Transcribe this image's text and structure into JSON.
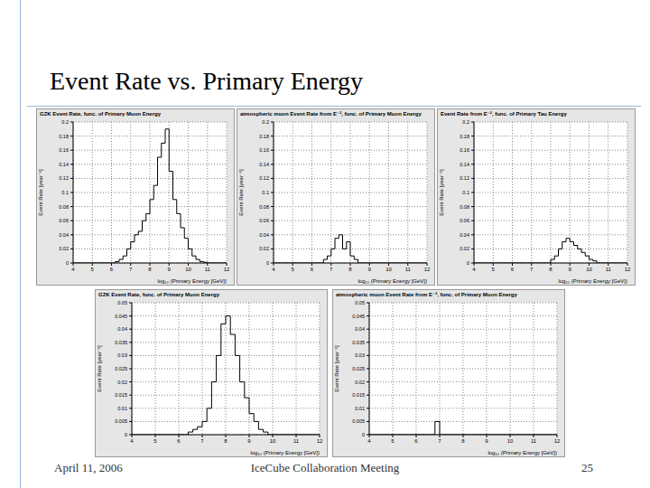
{
  "slide": {
    "title": "Event Rate vs. Primary Energy",
    "footer": {
      "date": "April 11, 2006",
      "meeting": "IceCube Collaboration Meeting",
      "page": "25"
    }
  },
  "chart_data": [
    {
      "type": "histogram",
      "title": "GZK Event Rate, func. of Primary Muon Energy",
      "x_label": "log₁₀ (Primary Energy [GeV])",
      "y_label": "Event Rate [year⁻¹]",
      "color": "#000000",
      "grid": true,
      "bins": [
        4,
        4.2,
        4.4,
        4.6,
        4.8,
        5,
        5.2,
        5.4,
        5.6,
        5.8,
        6,
        6.2,
        6.4,
        6.6,
        6.8,
        7,
        7.2,
        7.4,
        7.6,
        7.8,
        8,
        8.2,
        8.4,
        8.6,
        8.8,
        9,
        9.2,
        9.4,
        9.6,
        9.8,
        10,
        10.2,
        10.4,
        10.6,
        10.8,
        11,
        11.2,
        11.4,
        11.6,
        11.8,
        12
      ],
      "counts": [
        0,
        0,
        0,
        0,
        0,
        0,
        0,
        0,
        0,
        0,
        0,
        0.002,
        0.005,
        0.01,
        0.02,
        0.03,
        0.04,
        0.045,
        0.06,
        0.07,
        0.09,
        0.11,
        0.15,
        0.17,
        0.19,
        0.13,
        0.09,
        0.07,
        0.05,
        0.035,
        0.02,
        0.01,
        0.005,
        0.002,
        0.001,
        0,
        0,
        0,
        0,
        0
      ],
      "xlim": [
        4,
        12
      ],
      "xticks": [
        4,
        5,
        6,
        7,
        8,
        9,
        10,
        11,
        12
      ],
      "ylim": [
        0,
        0.2
      ],
      "yticks": [
        0,
        0.02,
        0.04,
        0.06,
        0.08,
        0.1,
        0.12,
        0.14,
        0.16,
        0.18,
        0.2
      ]
    },
    {
      "type": "histogram",
      "title": "atmospheric muon Event Rate from E⁻², func. of Primary Muon Energy",
      "x_label": "log₁₀ (Primary Energy [GeV])",
      "y_label": "Event Rate [year⁻¹]",
      "color": "#000000",
      "grid": true,
      "bins": [
        4,
        4.2,
        4.4,
        4.6,
        4.8,
        5,
        5.2,
        5.4,
        5.6,
        5.8,
        6,
        6.2,
        6.4,
        6.6,
        6.8,
        7,
        7.2,
        7.4,
        7.6,
        7.8,
        8,
        8.2,
        8.4,
        8.6,
        8.8,
        9,
        9.2,
        9.4,
        9.6,
        9.8,
        10,
        10.2,
        10.4,
        10.6,
        10.8,
        11,
        11.2,
        11.4,
        11.6,
        11.8,
        12
      ],
      "counts": [
        0,
        0,
        0,
        0,
        0,
        0,
        0,
        0,
        0,
        0,
        0,
        0,
        0,
        0.005,
        0.01,
        0.02,
        0.035,
        0.04,
        0.02,
        0.03,
        0.01,
        0.005,
        0,
        0,
        0,
        0,
        0,
        0,
        0,
        0,
        0,
        0,
        0,
        0,
        0,
        0,
        0,
        0,
        0,
        0
      ],
      "xlim": [
        4,
        12
      ],
      "xticks": [
        4,
        5,
        6,
        7,
        8,
        9,
        10,
        11,
        12
      ],
      "ylim": [
        0,
        0.2
      ],
      "yticks": [
        0,
        0.02,
        0.04,
        0.06,
        0.08,
        0.1,
        0.12,
        0.14,
        0.16,
        0.18,
        0.2
      ]
    },
    {
      "type": "histogram",
      "title": "Event Rate from E⁻², func. of Primary Tau Energy",
      "x_label": "log₁₀ (Primary Energy [GeV])",
      "y_label": "Event Rate [year⁻¹]",
      "color": "#000000",
      "grid": true,
      "bins": [
        4,
        4.2,
        4.4,
        4.6,
        4.8,
        5,
        5.2,
        5.4,
        5.6,
        5.8,
        6,
        6.2,
        6.4,
        6.6,
        6.8,
        7,
        7.2,
        7.4,
        7.6,
        7.8,
        8,
        8.2,
        8.4,
        8.6,
        8.8,
        9,
        9.2,
        9.4,
        9.6,
        9.8,
        10,
        10.2,
        10.4,
        10.6,
        10.8,
        11,
        11.2,
        11.4,
        11.6,
        11.8,
        12
      ],
      "counts": [
        0,
        0,
        0,
        0,
        0,
        0,
        0,
        0,
        0,
        0,
        0,
        0,
        0,
        0,
        0,
        0,
        0,
        0,
        0,
        0,
        0.005,
        0.01,
        0.02,
        0.03,
        0.035,
        0.03,
        0.025,
        0.02,
        0.015,
        0.01,
        0.005,
        0.003,
        0,
        0,
        0,
        0,
        0,
        0,
        0,
        0
      ],
      "xlim": [
        4,
        12
      ],
      "xticks": [
        4,
        5,
        6,
        7,
        8,
        9,
        10,
        11,
        12
      ],
      "ylim": [
        0,
        0.2
      ],
      "yticks": [
        0,
        0.02,
        0.04,
        0.06,
        0.08,
        0.1,
        0.12,
        0.14,
        0.16,
        0.18,
        0.2
      ]
    },
    {
      "type": "histogram",
      "title": "GZK Event Rate, func. of Primary Muon Energy",
      "x_label": "log₁₀ (Primary Energy [GeV])",
      "y_label": "Event Rate [year⁻¹]",
      "color": "#000000",
      "grid": true,
      "bins": [
        4,
        4.2,
        4.4,
        4.6,
        4.8,
        5,
        5.2,
        5.4,
        5.6,
        5.8,
        6,
        6.2,
        6.4,
        6.6,
        6.8,
        7,
        7.2,
        7.4,
        7.6,
        7.8,
        8,
        8.2,
        8.4,
        8.6,
        8.8,
        9,
        9.2,
        9.4,
        9.6,
        9.8,
        10,
        10.2,
        10.4,
        10.6,
        10.8,
        11,
        11.2,
        11.4,
        11.6,
        11.8,
        12
      ],
      "counts": [
        0,
        0,
        0,
        0,
        0,
        0,
        0,
        0,
        0,
        0,
        0,
        0,
        0.001,
        0.002,
        0.003,
        0.005,
        0.01,
        0.02,
        0.03,
        0.042,
        0.045,
        0.038,
        0.03,
        0.02,
        0.014,
        0.008,
        0.005,
        0.002,
        0.001,
        0,
        0,
        0,
        0,
        0,
        0,
        0,
        0,
        0,
        0,
        0
      ],
      "xlim": [
        4,
        12
      ],
      "xticks": [
        4,
        5,
        6,
        7,
        8,
        9,
        10,
        11,
        12
      ],
      "ylim": [
        0,
        0.05
      ],
      "yticks": [
        0,
        0.005,
        0.01,
        0.015,
        0.02,
        0.025,
        0.03,
        0.035,
        0.04,
        0.045,
        0.05
      ]
    },
    {
      "type": "histogram",
      "title": "atmospheric muon Event Rate from E⁻², func. of Primary Muon Energy",
      "x_label": "log₁₀ (Primary Energy [GeV])",
      "y_label": "Event Rate [year⁻¹]",
      "color": "#000000",
      "grid": true,
      "bins": [
        4,
        4.2,
        4.4,
        4.6,
        4.8,
        5,
        5.2,
        5.4,
        5.6,
        5.8,
        6,
        6.2,
        6.4,
        6.6,
        6.8,
        7,
        7.2,
        7.4,
        7.6,
        7.8,
        8,
        8.2,
        8.4,
        8.6,
        8.8,
        9,
        9.2,
        9.4,
        9.6,
        9.8,
        10,
        10.2,
        10.4,
        10.6,
        10.8,
        11,
        11.2,
        11.4,
        11.6,
        11.8,
        12
      ],
      "counts": [
        0,
        0,
        0,
        0,
        0,
        0,
        0,
        0,
        0,
        0,
        0,
        0,
        0,
        0,
        0.005,
        0,
        0,
        0,
        0,
        0,
        0,
        0,
        0,
        0,
        0,
        0,
        0,
        0,
        0,
        0,
        0,
        0,
        0,
        0,
        0,
        0,
        0,
        0,
        0,
        0
      ],
      "xlim": [
        4,
        12
      ],
      "xticks": [
        4,
        5,
        6,
        7,
        8,
        9,
        10,
        11,
        12
      ],
      "ylim": [
        0,
        0.05
      ],
      "yticks": [
        0,
        0.005,
        0.01,
        0.015,
        0.02,
        0.025,
        0.03,
        0.035,
        0.04,
        0.045,
        0.05
      ]
    }
  ]
}
